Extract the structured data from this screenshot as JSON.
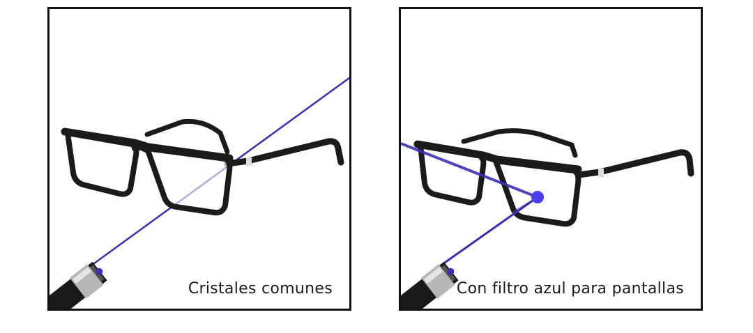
{
  "panels": [
    {
      "caption": "Cristales comunes"
    },
    {
      "caption": "Con filtro azul para pantallas"
    }
  ],
  "colors": {
    "laser": "#3b2fb8",
    "frame": "#1b1b1b",
    "border": "#111111"
  }
}
